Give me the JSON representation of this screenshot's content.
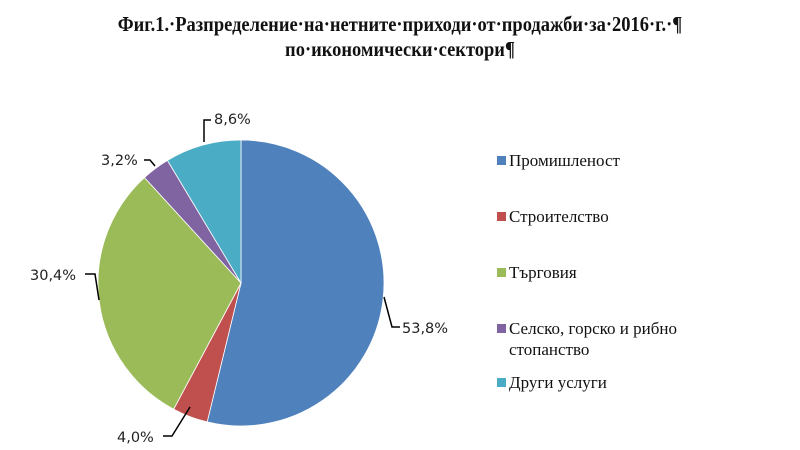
{
  "title": {
    "line1": "Фиг.1.·Разпределение·на·нетните·приходи·от·продажби·за·2016·г.·¶",
    "line2": "по·икономически·сектори¶"
  },
  "chart_data": {
    "type": "pie",
    "title": "Фиг.1. Разпределение на нетните приходи от продажби за 2016 г. по икономически сектори",
    "categories": [
      "Промишленост",
      "Строителство",
      "Търговия",
      "Селско, горско и рибно стопанство",
      "Други услуги"
    ],
    "values": [
      53.8,
      4.0,
      30.4,
      3.2,
      8.6
    ],
    "labels": [
      "53,8%",
      "4,0%",
      "30,4%",
      "3,2%",
      "8,6%"
    ],
    "colors": [
      "#4F81BD",
      "#C0504D",
      "#9BBB59",
      "#8064A2",
      "#4BACC6"
    ],
    "legend_position": "right",
    "start_angle_deg": 0,
    "direction": "clockwise"
  },
  "legend": {
    "items": [
      {
        "label": "Промишленост",
        "color": "#4F81BD"
      },
      {
        "label": "Строителство",
        "color": "#C0504D"
      },
      {
        "label": "Търговия",
        "color": "#9BBB59"
      },
      {
        "label_line1": "Селско, горско и рибно",
        "label_line2": "стопанство",
        "color": "#8064A2"
      },
      {
        "label": "Други услуги",
        "color": "#4BACC6"
      }
    ]
  }
}
